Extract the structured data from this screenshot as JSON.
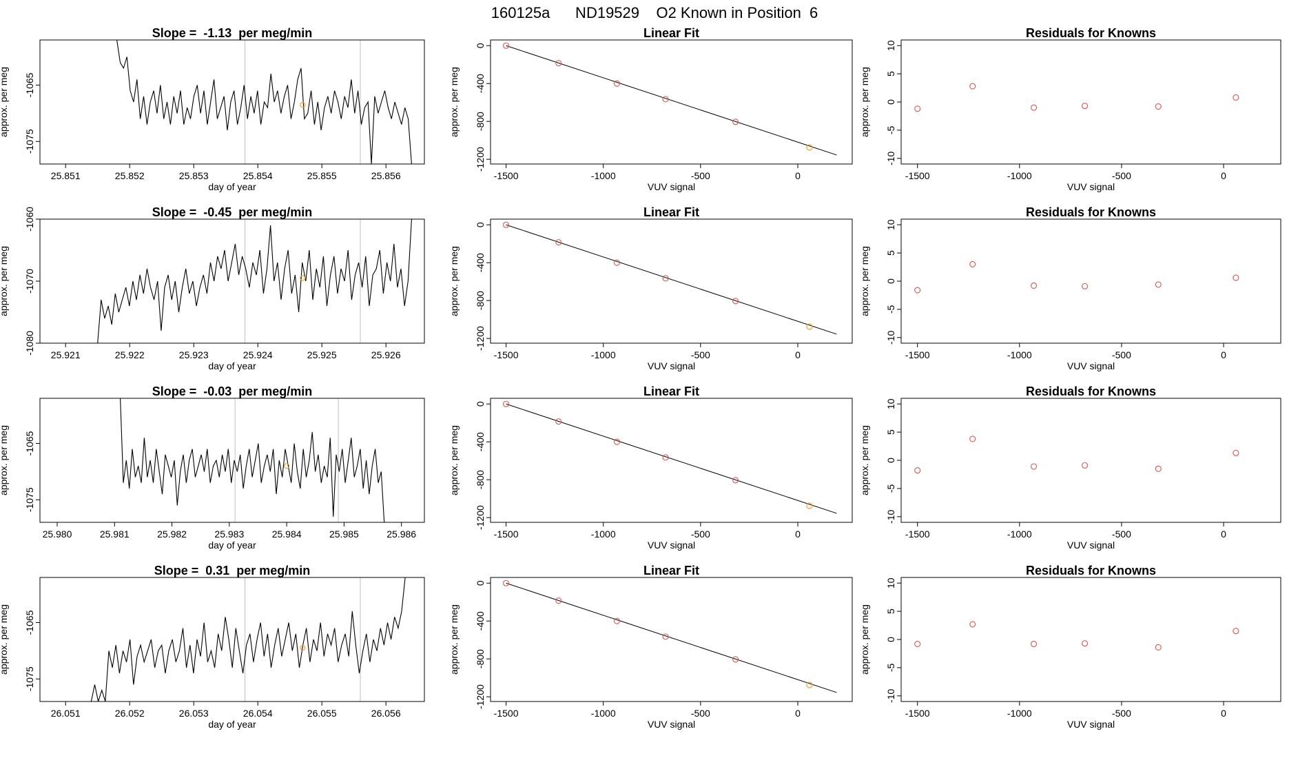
{
  "page_title": "160125a      ND19529    O2 Known in Position  6",
  "colors": {
    "line": "#000000",
    "vline": "#bfbfbf",
    "circle_red": "#d9534f",
    "circle_orange": "#f0a030"
  },
  "chart_data": [
    {
      "type": "line",
      "title": "Slope =  -1.13  per meg/min",
      "xlabel": "day of year",
      "ylabel": "approx. per meg",
      "xlim": [
        25.8506,
        25.8566
      ],
      "ylim": [
        -1079,
        -1057
      ],
      "xticks": [
        "25.851",
        "25.852",
        "25.853",
        "25.854",
        "25.855",
        "25.856"
      ],
      "yticks": [
        "-1065",
        "-1075"
      ],
      "vlines": [
        25.8538,
        25.8556
      ],
      "marker": {
        "x": 25.8547,
        "y": -1068.5
      },
      "series": [
        {
          "x_start": 25.8518,
          "x_end": 25.8564,
          "y": [
            -1057,
            -1061,
            -1062,
            -1060,
            -1066,
            -1068,
            -1064,
            -1071,
            -1067,
            -1072,
            -1068,
            -1066,
            -1070,
            -1065,
            -1071,
            -1068,
            -1072,
            -1067,
            -1070,
            -1066,
            -1072,
            -1069,
            -1071,
            -1067,
            -1065,
            -1070,
            -1066,
            -1072,
            -1068,
            -1064,
            -1071,
            -1069,
            -1067,
            -1073,
            -1068,
            -1066,
            -1072,
            -1069,
            -1065,
            -1071,
            -1067,
            -1070,
            -1066,
            -1072,
            -1068,
            -1069,
            -1063,
            -1068,
            -1066,
            -1070,
            -1067,
            -1065,
            -1071,
            -1068,
            -1064,
            -1062,
            -1071,
            -1070,
            -1066,
            -1072,
            -1068,
            -1073,
            -1069,
            -1067,
            -1070,
            -1066,
            -1068,
            -1071,
            -1067,
            -1069,
            -1064,
            -1070,
            -1066,
            -1072,
            -1069,
            -1068,
            -1079,
            -1067,
            -1070,
            -1068,
            -1066,
            -1069,
            -1071,
            -1068,
            -1070,
            -1072,
            -1069,
            -1071,
            -1079
          ]
        }
      ]
    },
    {
      "type": "scatter",
      "title": "Linear Fit",
      "xlabel": "VUV signal",
      "ylabel": "approx. per meg",
      "xlim": [
        -1580,
        280
      ],
      "ylim": [
        -1250,
        60
      ],
      "xticks": [
        -1500,
        -1000,
        -500,
        0
      ],
      "yticks": [
        0,
        -400,
        -800,
        -1200
      ],
      "fit_line": [
        [
          -1500,
          0
        ],
        [
          200,
          -1155
        ]
      ],
      "points": [
        [
          -1500,
          0
        ],
        [
          -1230,
          -185
        ],
        [
          -930,
          -400
        ],
        [
          -680,
          -565
        ],
        [
          -320,
          -805
        ]
      ],
      "highlight_point": [
        60,
        -1075
      ]
    },
    {
      "type": "scatter",
      "title": "Residuals for Knowns",
      "xlabel": "VUV signal",
      "ylabel": "approx. per meg",
      "xlim": [
        -1580,
        280
      ],
      "ylim": [
        -11,
        11
      ],
      "xticks": [
        -1500,
        -1000,
        -500,
        0
      ],
      "yticks": [
        10,
        5,
        0,
        -5,
        -10
      ],
      "points": [
        [
          -1500,
          -1.2
        ],
        [
          -1230,
          2.8
        ],
        [
          -930,
          -1.0
        ],
        [
          -680,
          -0.7
        ],
        [
          -320,
          -0.8
        ],
        [
          60,
          0.8
        ]
      ]
    },
    {
      "type": "line",
      "title": "Slope =  -0.45  per meg/min",
      "xlabel": "day of year",
      "ylabel": "approx. per meg",
      "xlim": [
        25.9206,
        25.9266
      ],
      "ylim": [
        -1080,
        -1060
      ],
      "xticks": [
        "25.921",
        "25.922",
        "25.923",
        "25.924",
        "25.925",
        "25.926"
      ],
      "yticks": [
        "-1060",
        "-1070",
        "-1080"
      ],
      "vlines": [
        25.9238,
        25.9256
      ],
      "marker": {
        "x": 25.9247,
        "y": -1069.5
      },
      "series": [
        {
          "x_start": 25.9215,
          "x_end": 25.9264,
          "y": [
            -1080,
            -1073,
            -1076,
            -1074,
            -1077,
            -1072,
            -1075,
            -1073,
            -1071,
            -1074,
            -1070,
            -1073,
            -1069,
            -1072,
            -1068,
            -1071,
            -1073,
            -1070,
            -1078,
            -1071,
            -1069,
            -1073,
            -1070,
            -1075,
            -1071,
            -1068,
            -1072,
            -1070,
            -1074,
            -1071,
            -1069,
            -1072,
            -1067,
            -1070,
            -1066,
            -1068,
            -1065,
            -1070,
            -1067,
            -1064,
            -1069,
            -1066,
            -1068,
            -1071,
            -1067,
            -1069,
            -1065,
            -1072,
            -1068,
            -1061,
            -1070,
            -1067,
            -1073,
            -1068,
            -1065,
            -1072,
            -1069,
            -1075,
            -1067,
            -1070,
            -1065,
            -1073,
            -1068,
            -1071,
            -1066,
            -1074,
            -1069,
            -1066,
            -1072,
            -1068,
            -1070,
            -1065,
            -1073,
            -1069,
            -1067,
            -1071,
            -1066,
            -1074,
            -1069,
            -1068,
            -1065,
            -1072,
            -1067,
            -1070,
            -1064,
            -1071,
            -1068,
            -1074,
            -1070,
            -1060
          ]
        }
      ]
    },
    {
      "type": "scatter",
      "title": "Linear Fit",
      "xlabel": "VUV signal",
      "ylabel": "approx. per meg",
      "xlim": [
        -1580,
        280
      ],
      "ylim": [
        -1250,
        60
      ],
      "xticks": [
        -1500,
        -1000,
        -500,
        0
      ],
      "yticks": [
        0,
        -400,
        -800,
        -1200
      ],
      "fit_line": [
        [
          -1500,
          0
        ],
        [
          200,
          -1155
        ]
      ],
      "points": [
        [
          -1500,
          0
        ],
        [
          -1230,
          -185
        ],
        [
          -930,
          -400
        ],
        [
          -680,
          -565
        ],
        [
          -320,
          -805
        ]
      ],
      "highlight_point": [
        60,
        -1075
      ]
    },
    {
      "type": "scatter",
      "title": "Residuals for Knowns",
      "xlabel": "VUV signal",
      "ylabel": "approx. per meg",
      "xlim": [
        -1580,
        280
      ],
      "ylim": [
        -11,
        11
      ],
      "xticks": [
        -1500,
        -1000,
        -500,
        0
      ],
      "yticks": [
        10,
        5,
        0,
        -5,
        -10
      ],
      "points": [
        [
          -1500,
          -1.6
        ],
        [
          -1230,
          3.0
        ],
        [
          -930,
          -0.8
        ],
        [
          -680,
          -0.9
        ],
        [
          -320,
          -0.6
        ],
        [
          60,
          0.6
        ]
      ]
    },
    {
      "type": "line",
      "title": "Slope =  -0.03  per meg/min",
      "xlabel": "day of year",
      "ylabel": "approx. per meg",
      "xlim": [
        25.9797,
        25.9864
      ],
      "ylim": [
        -1079,
        -1057
      ],
      "xticks": [
        "25.980",
        "25.981",
        "25.982",
        "25.983",
        "25.984",
        "25.985",
        "25.986"
      ],
      "yticks": [
        "-1065",
        "-1075"
      ],
      "vlines": [
        25.9831,
        25.9849
      ],
      "marker": {
        "x": 25.984,
        "y": -1069
      },
      "series": [
        {
          "x_start": 25.9811,
          "x_end": 25.9857,
          "y": [
            -1057,
            -1072,
            -1068,
            -1073,
            -1066,
            -1071,
            -1069,
            -1072,
            -1064,
            -1071,
            -1068,
            -1072,
            -1066,
            -1070,
            -1074,
            -1067,
            -1069,
            -1071,
            -1068,
            -1076,
            -1070,
            -1067,
            -1072,
            -1068,
            -1066,
            -1071,
            -1069,
            -1067,
            -1070,
            -1066,
            -1072,
            -1069,
            -1068,
            -1071,
            -1067,
            -1070,
            -1066,
            -1072,
            -1068,
            -1070,
            -1067,
            -1073,
            -1069,
            -1066,
            -1071,
            -1068,
            -1065,
            -1072,
            -1069,
            -1067,
            -1070,
            -1066,
            -1074,
            -1068,
            -1071,
            -1066,
            -1069,
            -1072,
            -1065,
            -1070,
            -1073,
            -1066,
            -1071,
            -1068,
            -1063,
            -1070,
            -1067,
            -1072,
            -1069,
            -1071,
            -1064,
            -1078,
            -1067,
            -1070,
            -1066,
            -1072,
            -1068,
            -1064,
            -1071,
            -1069,
            -1066,
            -1073,
            -1068,
            -1074,
            -1069,
            -1066,
            -1072,
            -1070,
            -1079
          ]
        }
      ]
    },
    {
      "type": "scatter",
      "title": "Linear Fit",
      "xlabel": "VUV signal",
      "ylabel": "approx. per meg",
      "xlim": [
        -1580,
        280
      ],
      "ylim": [
        -1250,
        60
      ],
      "xticks": [
        -1500,
        -1000,
        -500,
        0
      ],
      "yticks": [
        0,
        -400,
        -800,
        -1200
      ],
      "fit_line": [
        [
          -1500,
          0
        ],
        [
          200,
          -1155
        ]
      ],
      "points": [
        [
          -1500,
          0
        ],
        [
          -1230,
          -185
        ],
        [
          -930,
          -400
        ],
        [
          -680,
          -565
        ],
        [
          -320,
          -805
        ]
      ],
      "highlight_point": [
        60,
        -1075
      ]
    },
    {
      "type": "scatter",
      "title": "Residuals for Knowns",
      "xlabel": "VUV signal",
      "ylabel": "approx. per meg",
      "xlim": [
        -1580,
        280
      ],
      "ylim": [
        -11,
        11
      ],
      "xticks": [
        -1500,
        -1000,
        -500,
        0
      ],
      "yticks": [
        10,
        5,
        0,
        -5,
        -10
      ],
      "points": [
        [
          -1500,
          -1.8
        ],
        [
          -1230,
          3.8
        ],
        [
          -930,
          -1.1
        ],
        [
          -680,
          -0.9
        ],
        [
          -320,
          -1.5
        ],
        [
          60,
          1.3
        ]
      ]
    },
    {
      "type": "line",
      "title": "Slope =  0.31  per meg/min",
      "xlabel": "day of year",
      "ylabel": "approx. per meg",
      "xlim": [
        26.0506,
        26.0566
      ],
      "ylim": [
        -1079,
        -1057
      ],
      "xticks": [
        "26.051",
        "26.052",
        "26.053",
        "26.054",
        "26.055",
        "26.056"
      ],
      "yticks": [
        "-1065",
        "-1075"
      ],
      "vlines": [
        26.0538,
        26.0556
      ],
      "marker": {
        "x": 26.0547,
        "y": -1069.5
      },
      "series": [
        {
          "x_start": 26.0514,
          "x_end": 26.0563,
          "y": [
            -1079,
            -1076,
            -1079,
            -1077,
            -1079,
            -1070,
            -1073,
            -1069,
            -1074,
            -1070,
            -1072,
            -1068,
            -1076,
            -1071,
            -1069,
            -1072,
            -1070,
            -1068,
            -1073,
            -1070,
            -1069,
            -1074,
            -1070,
            -1068,
            -1072,
            -1070,
            -1066,
            -1073,
            -1069,
            -1074,
            -1068,
            -1071,
            -1065,
            -1072,
            -1070,
            -1073,
            -1067,
            -1070,
            -1064,
            -1068,
            -1073,
            -1066,
            -1070,
            -1074,
            -1069,
            -1067,
            -1072,
            -1068,
            -1065,
            -1071,
            -1067,
            -1073,
            -1069,
            -1066,
            -1071,
            -1068,
            -1065,
            -1070,
            -1067,
            -1073,
            -1069,
            -1066,
            -1072,
            -1068,
            -1070,
            -1065,
            -1071,
            -1067,
            -1069,
            -1066,
            -1072,
            -1069,
            -1067,
            -1071,
            -1063,
            -1069,
            -1074,
            -1070,
            -1067,
            -1072,
            -1068,
            -1070,
            -1066,
            -1069,
            -1065,
            -1068,
            -1064,
            -1066,
            -1063,
            -1057
          ]
        }
      ]
    },
    {
      "type": "scatter",
      "title": "Linear Fit",
      "xlabel": "VUV signal",
      "ylabel": "approx. per meg",
      "xlim": [
        -1580,
        280
      ],
      "ylim": [
        -1250,
        60
      ],
      "xticks": [
        -1500,
        -1000,
        -500,
        0
      ],
      "yticks": [
        0,
        -400,
        -800,
        -1200
      ],
      "fit_line": [
        [
          -1500,
          0
        ],
        [
          200,
          -1155
        ]
      ],
      "points": [
        [
          -1500,
          0
        ],
        [
          -1230,
          -185
        ],
        [
          -930,
          -400
        ],
        [
          -680,
          -565
        ],
        [
          -320,
          -805
        ]
      ],
      "highlight_point": [
        60,
        -1075
      ]
    },
    {
      "type": "scatter",
      "title": "Residuals for Knowns",
      "xlabel": "VUV signal",
      "ylabel": "approx. per meg",
      "xlim": [
        -1580,
        280
      ],
      "ylim": [
        -11,
        11
      ],
      "xticks": [
        -1500,
        -1000,
        -500,
        0
      ],
      "yticks": [
        10,
        5,
        0,
        -5,
        -10
      ],
      "points": [
        [
          -1500,
          -0.8
        ],
        [
          -1230,
          2.7
        ],
        [
          -930,
          -0.8
        ],
        [
          -680,
          -0.7
        ],
        [
          -320,
          -1.4
        ],
        [
          60,
          1.5
        ]
      ]
    }
  ]
}
